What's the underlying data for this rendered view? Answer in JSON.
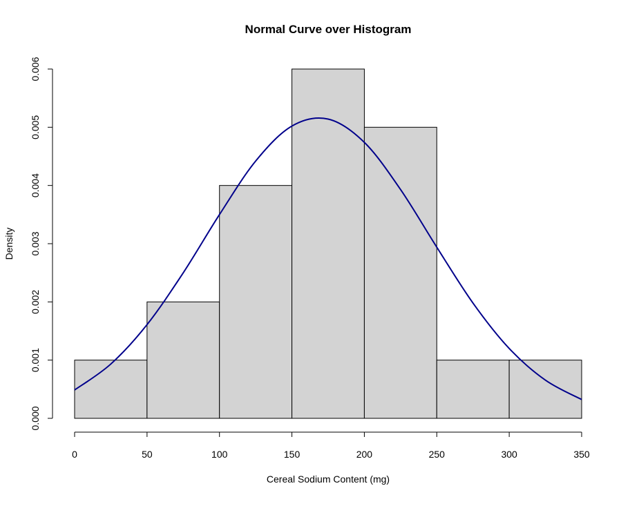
{
  "chart_data": {
    "type": "bar",
    "title": "Normal Curve over Histogram",
    "xlabel": "Cereal Sodium Content (mg)",
    "ylabel": "Density",
    "xlim": [
      0,
      350
    ],
    "ylim": [
      0,
      0.006
    ],
    "grid": false,
    "x_ticks": [
      "0",
      "50",
      "100",
      "150",
      "200",
      "250",
      "300",
      "350"
    ],
    "y_ticks": [
      "0.000",
      "0.001",
      "0.002",
      "0.003",
      "0.004",
      "0.005",
      "0.006"
    ],
    "bins": [
      [
        0,
        50
      ],
      [
        50,
        100
      ],
      [
        100,
        150
      ],
      [
        150,
        200
      ],
      [
        200,
        250
      ],
      [
        250,
        300
      ],
      [
        300,
        350
      ]
    ],
    "values": [
      0.001,
      0.002,
      0.004,
      0.006,
      0.005,
      0.001,
      0.001
    ],
    "bar_color": "#d3d3d3",
    "curve": {
      "type": "line",
      "color": "#00008b",
      "x": [
        0,
        25,
        50,
        75,
        100,
        125,
        150,
        175,
        200,
        225,
        250,
        275,
        300,
        325,
        350
      ],
      "y": [
        0.000487,
        0.000933,
        0.00161,
        0.0025,
        0.0035,
        0.00442,
        0.00502,
        0.00514,
        0.00474,
        0.00393,
        0.00294,
        0.00198,
        0.0012,
        0.000656,
        0.000323
      ]
    }
  }
}
